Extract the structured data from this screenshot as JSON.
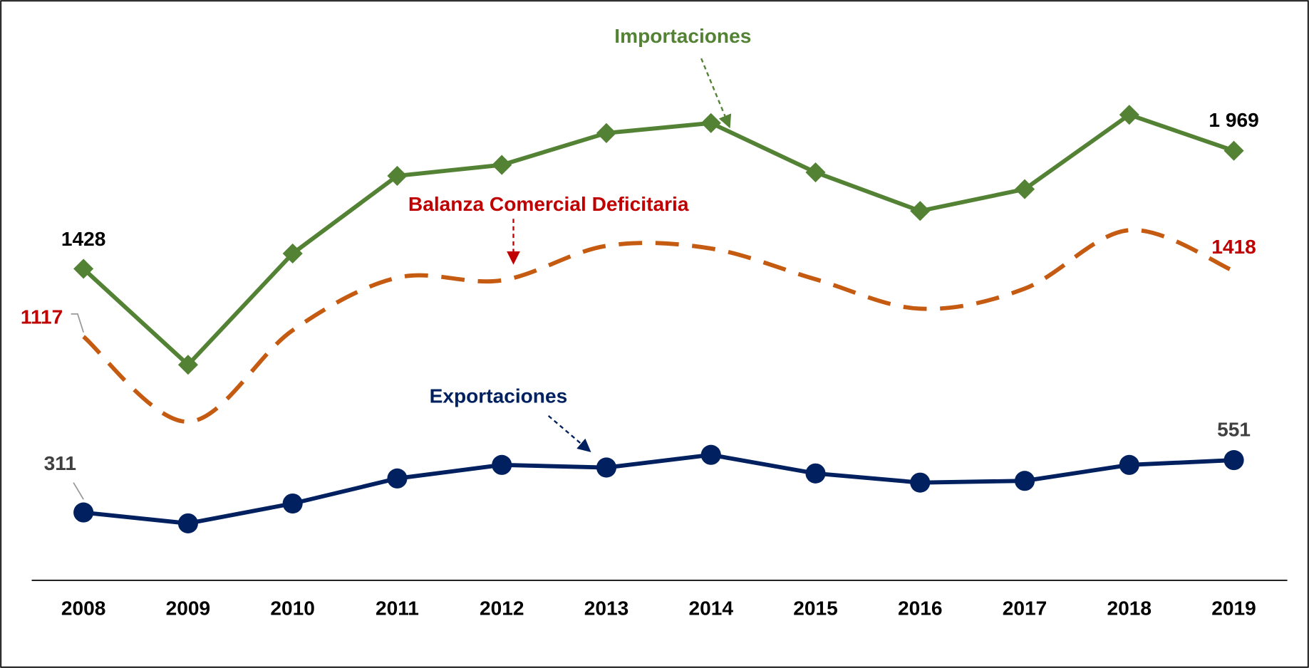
{
  "chart_data": {
    "type": "line",
    "categories": [
      "2008",
      "2009",
      "2010",
      "2011",
      "2012",
      "2013",
      "2014",
      "2015",
      "2016",
      "2017",
      "2018",
      "2019"
    ],
    "ylim": [
      0,
      2660
    ],
    "series": [
      {
        "name": "Importaciones",
        "color": "#548235",
        "marker": "diamond",
        "values": [
          1428,
          988,
          1498,
          1854,
          1904,
          2050,
          2096,
          1870,
          1693,
          1793,
          2134,
          1969
        ],
        "value_labels": [
          "1428",
          null,
          null,
          null,
          null,
          null,
          null,
          null,
          null,
          null,
          null,
          "1 969"
        ]
      },
      {
        "name": "Balanza Comercial Deficitaria",
        "color": "#c55a11",
        "dashed": true,
        "smooth": true,
        "values": [
          1117,
          727,
          1146,
          1387,
          1375,
          1533,
          1521,
          1380,
          1245,
          1337,
          1605,
          1418
        ],
        "value_labels": [
          "1117",
          null,
          null,
          null,
          null,
          null,
          null,
          null,
          null,
          null,
          null,
          "1418"
        ]
      },
      {
        "name": "Exportaciones",
        "color": "#002060",
        "marker": "circle",
        "values": [
          311,
          261,
          352,
          467,
          529,
          517,
          575,
          490,
          448,
          456,
          529,
          551
        ],
        "value_labels": [
          "311",
          null,
          null,
          null,
          null,
          null,
          null,
          null,
          null,
          null,
          null,
          "551"
        ]
      }
    ]
  }
}
